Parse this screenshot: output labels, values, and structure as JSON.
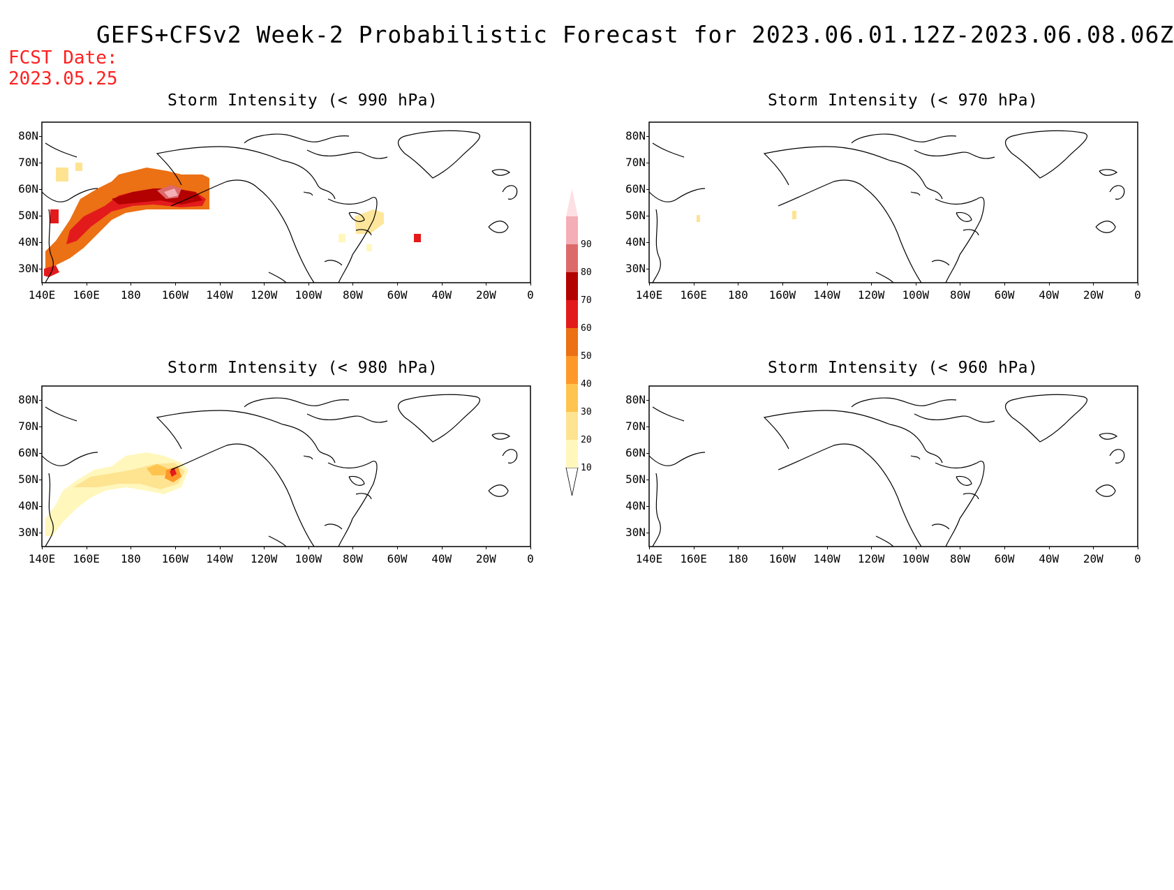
{
  "title": "GEFS+CFSv2 Week-2 Probabilistic Forecast for 2023.06.01.12Z-2023.06.08.06Z",
  "fcst_date": {
    "label": "FCST Date:",
    "value": "2023.05.25"
  },
  "lat_labels": [
    "80N",
    "70N",
    "60N",
    "50N",
    "40N",
    "30N"
  ],
  "lon_labels": [
    "140E",
    "160E",
    "180",
    "160W",
    "140W",
    "120W",
    "100W",
    "80W",
    "60W",
    "40W",
    "20W",
    "0"
  ],
  "colorbar": {
    "ticks": [
      "10",
      "20",
      "30",
      "40",
      "50",
      "60",
      "70",
      "80",
      "90"
    ],
    "colors": [
      "#fff7bc",
      "#fee391",
      "#fec44f",
      "#fe9929",
      "#ec7014",
      "#e31a1c",
      "#b30000",
      "#dd6a6a",
      "#f4aeb5",
      "#fde0e4"
    ]
  },
  "panels": [
    {
      "id": "p990",
      "title": "Storm Intensity (< 990 hPa)"
    },
    {
      "id": "p970",
      "title": "Storm Intensity (< 970 hPa)"
    },
    {
      "id": "p980",
      "title": "Storm Intensity (< 980 hPa)"
    },
    {
      "id": "p960",
      "title": "Storm Intensity (< 960 hPa)"
    }
  ]
}
